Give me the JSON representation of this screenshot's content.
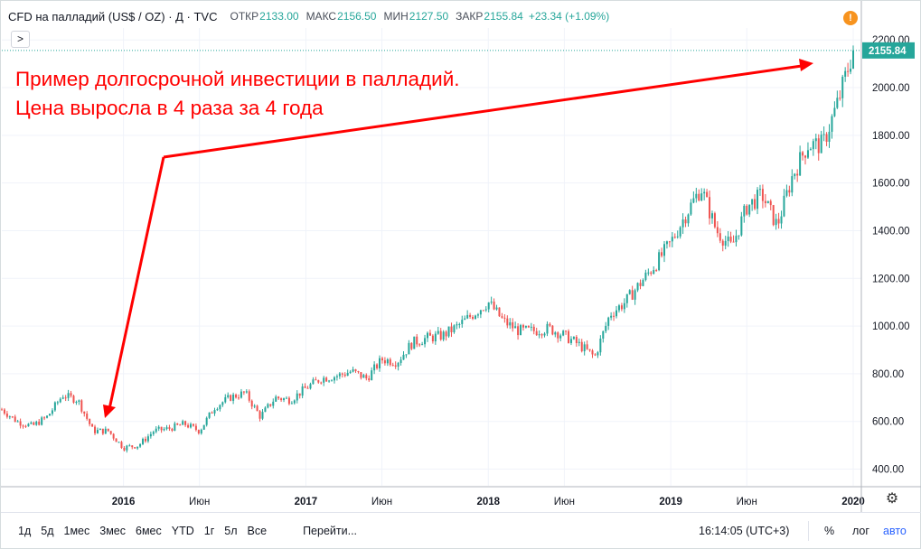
{
  "header": {
    "symbol": "CFD на палладий (US$ / OZ) · Д · TVC",
    "open_label": "ОТКР",
    "open": "2133.00",
    "high_label": "МАКС",
    "high": "2156.50",
    "low_label": "МИН",
    "low": "2127.50",
    "close_label": "ЗАКР",
    "close": "2155.84",
    "change": "+23.34 (+1.09%)",
    "collapse_glyph": ">",
    "warning_glyph": "!"
  },
  "annotation": {
    "line1": "Пример долгосрочной инвестиции в палладий.",
    "line2": "Цена выросла в 4 раза за 4 года"
  },
  "bottombar": {
    "timeframes": [
      "1д",
      "5д",
      "1мес",
      "3мес",
      "6мес",
      "YTD",
      "1г",
      "5л",
      "Все"
    ],
    "goto": "Перейти...",
    "clock": "16:14:05 (UTC+3)",
    "percent": "%",
    "log": "лог",
    "auto": "авто"
  },
  "colors": {
    "up": "#26a69a",
    "down": "#ef5350",
    "arrow": "#ff0000",
    "last_price_bg": "#26a69a",
    "grid": "#f0f3fa"
  },
  "icons": {
    "settings": "gear-icon",
    "warning": "warning-icon"
  },
  "chart_data": {
    "type": "candlestick",
    "title": "CFD на палладий (US$ / OZ) · Д · TVC",
    "last_price": "2155.84",
    "y_ticks": [
      "400.00",
      "600.00",
      "800.00",
      "1000.00",
      "1200.00",
      "1400.00",
      "1600.00",
      "1800.00",
      "2000.00",
      "2200.00"
    ],
    "x_ticks": [
      "2016",
      "Июн",
      "2017",
      "Июн",
      "2018",
      "Июн",
      "2019",
      "Июн",
      "2020"
    ],
    "ylim": [
      330,
      2250
    ],
    "x_range": [
      "2015-05",
      "2020-01"
    ],
    "grid": true,
    "path_points": [
      [
        "2015-05",
        650
      ],
      [
        "2015-06",
        600
      ],
      [
        "2015-07",
        580
      ],
      [
        "2015-08",
        620
      ],
      [
        "2015-09",
        710
      ],
      [
        "2015-10",
        690
      ],
      [
        "2015-11",
        560
      ],
      [
        "2015-12",
        560
      ],
      [
        "2016-01",
        490
      ],
      [
        "2016-02",
        500
      ],
      [
        "2016-03",
        560
      ],
      [
        "2016-04",
        570
      ],
      [
        "2016-05",
        590
      ],
      [
        "2016-06",
        560
      ],
      [
        "2016-07",
        660
      ],
      [
        "2016-08",
        700
      ],
      [
        "2016-09",
        720
      ],
      [
        "2016-10",
        620
      ],
      [
        "2016-11",
        700
      ],
      [
        "2016-12",
        690
      ],
      [
        "2017-01",
        740
      ],
      [
        "2017-02",
        780
      ],
      [
        "2017-03",
        790
      ],
      [
        "2017-04",
        810
      ],
      [
        "2017-05",
        780
      ],
      [
        "2017-06",
        860
      ],
      [
        "2017-07",
        850
      ],
      [
        "2017-08",
        930
      ],
      [
        "2017-09",
        950
      ],
      [
        "2017-10",
        960
      ],
      [
        "2017-11",
        1000
      ],
      [
        "2017-12",
        1050
      ],
      [
        "2018-01",
        1100
      ],
      [
        "2018-02",
        1020
      ],
      [
        "2018-03",
        980
      ],
      [
        "2018-04",
        980
      ],
      [
        "2018-05",
        990
      ],
      [
        "2018-06",
        960
      ],
      [
        "2018-07",
        920
      ],
      [
        "2018-08",
        870
      ],
      [
        "2018-09",
        1050
      ],
      [
        "2018-10",
        1100
      ],
      [
        "2018-11",
        1180
      ],
      [
        "2018-12",
        1260
      ],
      [
        "2019-01",
        1350
      ],
      [
        "2019-02",
        1470
      ],
      [
        "2019-03",
        1580
      ],
      [
        "2019-04",
        1400
      ],
      [
        "2019-05",
        1330
      ],
      [
        "2019-06",
        1500
      ],
      [
        "2019-07",
        1550
      ],
      [
        "2019-08",
        1420
      ],
      [
        "2019-09",
        1630
      ],
      [
        "2019-10",
        1760
      ],
      [
        "2019-11",
        1760
      ],
      [
        "2019-12",
        1940
      ],
      [
        "2020-01",
        2155.84
      ]
    ]
  }
}
